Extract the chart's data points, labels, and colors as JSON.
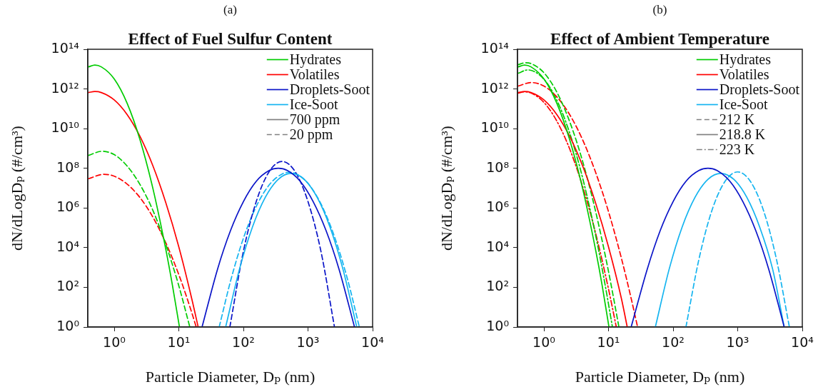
{
  "chart_data": [
    {
      "type": "line",
      "subtitle": "(a)",
      "title": "Effect of Fuel Sulfur Content",
      "xlabel": "Particle Diameter, Dₚ (nm)",
      "ylabel": "dN/dLogDₚ (#/cm³)",
      "log": "xy",
      "grid": false,
      "legend": "top right",
      "marker": "none",
      "xlim": [
        0.39,
        10000
      ],
      "xticks": [
        {
          "value": 1,
          "label": "10⁰"
        },
        {
          "value": 10,
          "label": "10¹"
        },
        {
          "value": 100,
          "label": "10²"
        },
        {
          "value": 1000,
          "label": "10³"
        },
        {
          "value": 10000,
          "label": "10⁴"
        }
      ],
      "ylim": [
        1,
        100000000000000.0
      ],
      "yticks": [
        {
          "value": 1,
          "label": "10⁰"
        },
        {
          "value": 100,
          "label": "10²"
        },
        {
          "value": 10000,
          "label": "10⁴"
        },
        {
          "value": 1000000.0,
          "label": "10⁶"
        },
        {
          "value": 100000000.0,
          "label": "10⁸"
        },
        {
          "value": 10000000000.0,
          "label": "10¹⁰"
        },
        {
          "value": 1000000000000.0,
          "label": "10¹²"
        },
        {
          "value": 100000000000000.0,
          "label": "10¹⁴"
        }
      ],
      "series": [
        {
          "name": "Hydrates",
          "color": "#00cc00",
          "line_style": "solid",
          "x": [
            0.4,
            0.501,
            0.631,
            1,
            1.585,
            2.512,
            3.981,
            6.31,
            7.943,
            10.23
          ],
          "values": [
            13000000000000.0,
            16000000000000.0,
            13000000000000.0,
            3200000000000.0,
            190000000000.0,
            2700000000.0,
            9300000.0,
            7800,
            135,
            1
          ]
        },
        {
          "name": "Volatiles",
          "color": "#ff0000",
          "line_style": "solid",
          "x": [
            0.4,
            0.501,
            0.631,
            1,
            1.585,
            2.512,
            3.981,
            6.31,
            10,
            15.85,
            19.95
          ],
          "values": [
            660000000000.0,
            740000000000.0,
            660000000000.0,
            280000000000.0,
            51000000000.0,
            4000000000.0,
            130000000.0,
            1800000.0,
            11000,
            27,
            1
          ]
        },
        {
          "name": "Droplets-Soot",
          "color": "#0a14c8",
          "line_style": "solid",
          "x": [
            22.9,
            39.8,
            63.1,
            100,
            158,
            251,
            347,
            479,
            759,
            1202,
            1905,
            3020,
            5248
          ],
          "values": [
            1,
            830,
            72000,
            2100000.0,
            22000000.0,
            77000000.0,
            100000000.0,
            77000000.0,
            22000000.0,
            2100000.0,
            72000,
            830,
            1
          ]
        },
        {
          "name": "Ice-Soot",
          "color": "#14b4f0",
          "line_style": "solid",
          "x": [
            53.1,
            87.1,
            138,
            219,
            347,
            550,
            871,
            1380,
            2188,
            3467,
            5689
          ],
          "values": [
            1,
            850,
            110000,
            3500000.0,
            28000000.0,
            55000000.0,
            28000000.0,
            3500000.0,
            110000,
            850,
            1
          ]
        },
        {
          "color": "#00cc00",
          "line_style": "dashed",
          "x": [
            0.4,
            0.646,
            1,
            1.585,
            2.512,
            3.981,
            6.31,
            10,
            14.8
          ],
          "values": [
            450000000.0,
            720000000.0,
            490000000.0,
            130000000.0,
            15000000.0,
            740000,
            14000,
            120,
            1
          ]
        },
        {
          "color": "#ff0000",
          "line_style": "dashed",
          "x": [
            0.4,
            0.692,
            1,
            1.585,
            2.512,
            3.981,
            6.31,
            10,
            15.85,
            18.6
          ],
          "values": [
            30000000.0,
            50000000.0,
            40000000.0,
            16000000.0,
            3300000.0,
            340000,
            17000,
            440,
            5.4,
            1
          ]
        },
        {
          "color": "#0a14c8",
          "line_style": "dashed",
          "x": [
            61.7,
            100,
            158,
            251,
            398,
            631,
            1000,
            1585,
            2570
          ],
          "values": [
            1,
            6600,
            2100000.0,
            69000000.0,
            220000000.0,
            69000000.0,
            2100000.0,
            6600,
            1
          ]
        },
        {
          "color": "#14b4f0",
          "line_style": "dashed",
          "x": [
            42.2,
            64.6,
            102,
            162,
            257,
            407,
            513,
            646,
            1023,
            1622,
            2570,
            4074,
            6237
          ],
          "values": [
            1,
            270,
            36000,
            1400000.0,
            16000000.0,
            54000000.0,
            63000000.0,
            54000000.0,
            16000000.0,
            1400000.0,
            36000,
            270,
            1
          ]
        },
        {
          "name": "700 ppm",
          "color": "#808080",
          "line_style": "solid"
        },
        {
          "name": "20 ppm",
          "color": "#808080",
          "line_style": "dashed"
        }
      ]
    },
    {
      "type": "line",
      "subtitle": "(b)",
      "title": "Effect of Ambient Temperature",
      "xlabel": "Particle Diameter, Dₚ (nm)",
      "ylabel": "dN/dLogDₚ (#/cm³)",
      "log": "xy",
      "grid": false,
      "legend": "top right",
      "marker": "none",
      "xlim": [
        0.39,
        10000
      ],
      "xticks": [
        {
          "value": 1,
          "label": "10⁰"
        },
        {
          "value": 10,
          "label": "10¹"
        },
        {
          "value": 100,
          "label": "10²"
        },
        {
          "value": 1000,
          "label": "10³"
        },
        {
          "value": 10000,
          "label": "10⁴"
        }
      ],
      "ylim": [
        1,
        100000000000000.0
      ],
      "yticks": [
        {
          "value": 1,
          "label": "10⁰"
        },
        {
          "value": 100,
          "label": "10²"
        },
        {
          "value": 10000,
          "label": "10⁴"
        },
        {
          "value": 1000000.0,
          "label": "10⁶"
        },
        {
          "value": 100000000.0,
          "label": "10⁸"
        },
        {
          "value": 10000000000.0,
          "label": "10¹⁰"
        },
        {
          "value": 1000000000000.0,
          "label": "10¹²"
        },
        {
          "value": 100000000000000.0,
          "label": "10¹⁴"
        }
      ],
      "series": [
        {
          "name": "Hydrates",
          "color": "#00cc00",
          "line_style": "solid",
          "x": [
            0.4,
            0.501,
            0.631,
            1,
            1.585,
            2.512,
            3.981,
            6.31,
            7.943,
            10.16
          ],
          "values": [
            13000000000000.0,
            16000000000000.0,
            13000000000000.0,
            3200000000000.0,
            190000000000.0,
            2700000000.0,
            9300000.0,
            7800,
            135,
            1
          ]
        },
        {
          "name": "Volatiles",
          "color": "#ff0000",
          "line_style": "solid",
          "x": [
            0.4,
            0.501,
            0.631,
            1,
            1.585,
            2.512,
            3.981,
            6.31,
            10,
            15.85,
            19.5
          ],
          "values": [
            660000000000.0,
            740000000000.0,
            660000000000.0,
            280000000000.0,
            51000000000.0,
            4000000000.0,
            130000000.0,
            1800000.0,
            11000,
            27,
            1
          ]
        },
        {
          "name": "Droplets-Soot",
          "color": "#0a14c8",
          "line_style": "solid",
          "x": [
            22.4,
            39.8,
            63.1,
            100,
            158,
            251,
            347,
            479,
            759,
            1202,
            1905,
            3020,
            5248
          ],
          "values": [
            1,
            830,
            72000,
            2100000.0,
            22000000.0,
            77000000.0,
            100000000.0,
            77000000.0,
            22000000.0,
            2100000.0,
            72000,
            830,
            1
          ]
        },
        {
          "name": "Ice-Soot",
          "color": "#14b4f0",
          "line_style": "solid",
          "x": [
            53.1,
            87.1,
            138,
            219,
            347,
            550,
            871,
            1380,
            2188,
            3467,
            5248
          ],
          "values": [
            1,
            850,
            110000,
            3500000.0,
            28000000.0,
            55000000.0,
            28000000.0,
            3500000.0,
            110000,
            850,
            1
          ]
        },
        {
          "color": "#00cc00",
          "line_style": "dashed",
          "x": [
            0.4,
            0.525,
            0.631,
            1,
            1.585,
            2.512,
            3.981,
            6.31,
            10,
            14.5
          ],
          "values": [
            17000000000000.0,
            21000000000000.0,
            19000000000000.0,
            6600000000000.0,
            690000000000.0,
            22000000000.0,
            220000000.0,
            680000,
            630,
            1
          ]
        },
        {
          "color": "#ff0000",
          "line_style": "dashed",
          "x": [
            0.4,
            0.631,
            1,
            1.585,
            2.512,
            3.981,
            6.31,
            10,
            15.85,
            22.4,
            28.2
          ],
          "values": [
            1400000000000.0,
            2100000000000.0,
            1400000000000.0,
            400000000000.0,
            50000000000.0,
            2700000000.0,
            63000000.0,
            650000,
            2900,
            28,
            1
          ]
        },
        {
          "color": "#14b4f0",
          "line_style": "dashed",
          "x": [
            158,
            251,
            398,
            631,
            1000,
            1585,
            2512,
            3981,
            6310
          ],
          "values": [
            1,
            2600,
            740000,
            21000000.0,
            66000000.0,
            21000000.0,
            740000,
            2600,
            1
          ]
        },
        {
          "color": "#00cc00",
          "line_style": "dashdot",
          "x": [
            0.4,
            0.562,
            1,
            1.585,
            2.512,
            3.981,
            6.31,
            8.913,
            11.5
          ],
          "values": [
            6200000000000.0,
            9100000000000.0,
            3100000000000.0,
            270000000000.0,
            5900000000.0,
            32000000.0,
            43000,
            120,
            1
          ]
        },
        {
          "color": "#ff0000",
          "line_style": "dashdot",
          "x": [
            0.4,
            0.501,
            0.631,
            1,
            1.585,
            2.512,
            3.981,
            6.31,
            10,
            13.2
          ],
          "values": [
            620000000000.0,
            710000000000.0,
            620000000000.0,
            210000000000.0,
            24000000000.0,
            930000000.0,
            12000000.0,
            54000,
            83,
            1
          ]
        },
        {
          "name": "212 K",
          "color": "#808080",
          "line_style": "dashed"
        },
        {
          "name": "218.8 K",
          "color": "#808080",
          "line_style": "solid"
        },
        {
          "name": "223 K",
          "color": "#808080",
          "line_style": "dashdot"
        }
      ]
    }
  ]
}
